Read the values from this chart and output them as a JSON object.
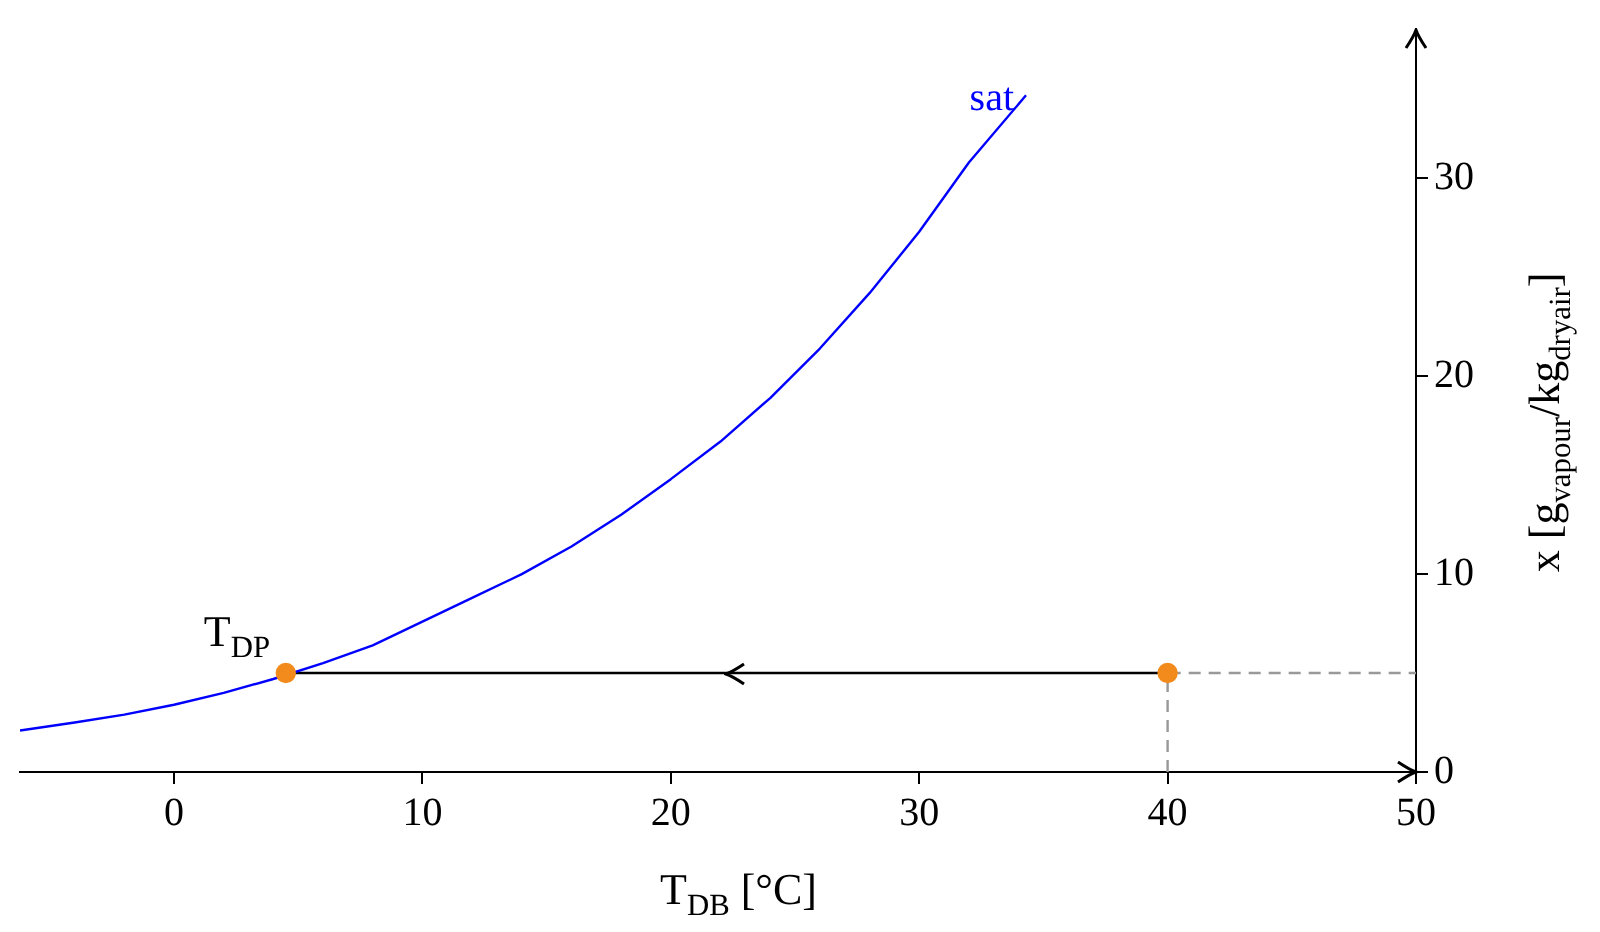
{
  "chart_data": {
    "type": "line",
    "xlabel": "T$_{DB}$ [°C]",
    "ylabel": "x [g$_{vapour}$/kg$_{dryair}$]",
    "xlim": [
      -6.2,
      50
    ],
    "ylim": [
      0,
      37.5
    ],
    "xticks": [
      0,
      10,
      20,
      30,
      40,
      50
    ],
    "yticks": [
      0,
      10,
      20,
      30
    ],
    "grid": false,
    "legend": false,
    "series": [
      {
        "name": "sat",
        "color": "#0000ff",
        "marker": "none",
        "line_style": "solid",
        "x": [
          -6.2,
          -4,
          -2,
          0,
          2,
          4,
          6,
          8,
          10,
          12,
          14,
          16,
          18,
          20,
          22,
          24,
          26,
          28,
          30,
          32,
          34.3
        ],
        "values": [
          2.1,
          2.5,
          2.9,
          3.4,
          4.0,
          4.7,
          5.5,
          6.4,
          7.6,
          8.8,
          10.0,
          11.4,
          13.0,
          14.8,
          16.7,
          18.9,
          21.4,
          24.2,
          27.3,
          30.8,
          34.2
        ]
      },
      {
        "color": "#999999",
        "marker": "none",
        "line_style": "dashed",
        "x": [
          40,
          40,
          50
        ],
        "values": [
          0,
          5,
          5
        ]
      },
      {
        "color": "#000000",
        "marker": "none",
        "line_style": "solid",
        "x": [
          40,
          4.5
        ],
        "values": [
          5,
          5
        ]
      },
      {
        "type": "scatter",
        "color": "#f28a1c",
        "marker": "circle",
        "x": [
          4.5,
          40
        ],
        "values": [
          5,
          5
        ]
      }
    ],
    "annotations": [
      {
        "text": "T$_{DP}$",
        "x": 4.5,
        "y": 5
      }
    ]
  }
}
